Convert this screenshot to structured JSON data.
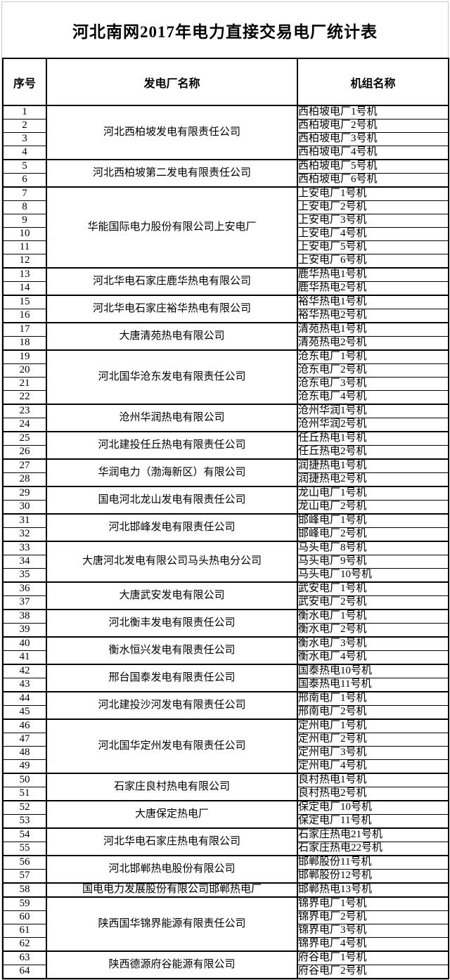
{
  "page": {
    "title": "河北南网2017年电力直接交易电厂统计表"
  },
  "colors": {
    "text": "#000000",
    "table_border": "#000000",
    "sheet_gridline": "#c9c9c9",
    "background": "#ffffff"
  },
  "table": {
    "columns": [
      {
        "key": "no",
        "label": "序号"
      },
      {
        "key": "plant",
        "label": "发电厂名称"
      },
      {
        "key": "unit",
        "label": "机组名称"
      }
    ],
    "groups": [
      {
        "plant": "河北西柏坡发电有限责任公司",
        "rows": [
          {
            "no": "1",
            "unit": "西柏坡电厂1号机"
          },
          {
            "no": "2",
            "unit": "西柏坡电厂2号机"
          },
          {
            "no": "3",
            "unit": "西柏坡电厂3号机"
          },
          {
            "no": "4",
            "unit": "西柏坡电厂4号机"
          }
        ]
      },
      {
        "plant": "河北西柏坡第二发电有限责任公司",
        "rows": [
          {
            "no": "5",
            "unit": "西柏坡电厂5号机"
          },
          {
            "no": "6",
            "unit": "西柏坡电厂6号机"
          }
        ]
      },
      {
        "plant": "华能国际电力股份有限公司上安电厂",
        "rows": [
          {
            "no": "7",
            "unit": "上安电厂1号机"
          },
          {
            "no": "8",
            "unit": "上安电厂2号机"
          },
          {
            "no": "9",
            "unit": "上安电厂3号机"
          },
          {
            "no": "10",
            "unit": "上安电厂4号机"
          },
          {
            "no": "11",
            "unit": "上安电厂5号机"
          },
          {
            "no": "12",
            "unit": "上安电厂6号机"
          }
        ]
      },
      {
        "plant": "河北华电石家庄鹿华热电有限公司",
        "rows": [
          {
            "no": "13",
            "unit": "鹿华热电1号机"
          },
          {
            "no": "14",
            "unit": "鹿华热电2号机"
          }
        ]
      },
      {
        "plant": "河北华电石家庄裕华热电有限公司",
        "rows": [
          {
            "no": "15",
            "unit": "裕华热电1号机"
          },
          {
            "no": "16",
            "unit": "裕华热电2号机"
          }
        ]
      },
      {
        "plant": "大唐清苑热电有限公司",
        "rows": [
          {
            "no": "17",
            "unit": "清苑热电1号机"
          },
          {
            "no": "18",
            "unit": "清苑热电2号机"
          }
        ]
      },
      {
        "plant": "河北国华沧东发电有限责任公司",
        "rows": [
          {
            "no": "19",
            "unit": "沧东电厂1号机"
          },
          {
            "no": "20",
            "unit": "沧东电厂2号机"
          },
          {
            "no": "21",
            "unit": "沧东电厂3号机"
          },
          {
            "no": "22",
            "unit": "沧东电厂4号机"
          }
        ]
      },
      {
        "plant": "沧州华润热电有限公司",
        "rows": [
          {
            "no": "23",
            "unit": "沧州华润1号机"
          },
          {
            "no": "24",
            "unit": "沧州华润2号机"
          }
        ]
      },
      {
        "plant": "河北建投任丘热电有限责任公司",
        "rows": [
          {
            "no": "25",
            "unit": "任丘热电1号机"
          },
          {
            "no": "26",
            "unit": "任丘热电2号机"
          }
        ]
      },
      {
        "plant": "华润电力（渤海新区）有限公司",
        "rows": [
          {
            "no": "27",
            "unit": "润捷热电1号机"
          },
          {
            "no": "28",
            "unit": "润捷热电2号机"
          }
        ]
      },
      {
        "plant": "国电河北龙山发电有限责任公司",
        "rows": [
          {
            "no": "29",
            "unit": "龙山电厂1号机"
          },
          {
            "no": "30",
            "unit": "龙山电厂2号机"
          }
        ]
      },
      {
        "plant": "河北邯峰发电有限责任公司",
        "rows": [
          {
            "no": "31",
            "unit": "邯峰电厂1号机"
          },
          {
            "no": "32",
            "unit": "邯峰电厂2号机"
          }
        ]
      },
      {
        "plant": "大唐河北发电有限公司马头热电分公司",
        "rows": [
          {
            "no": "33",
            "unit": "马头电厂8号机"
          },
          {
            "no": "34",
            "unit": "马头电厂9号机"
          },
          {
            "no": "35",
            "unit": "马头电厂10号机"
          }
        ]
      },
      {
        "plant": "大唐武安发电有限公司",
        "rows": [
          {
            "no": "36",
            "unit": "武安电厂1号机"
          },
          {
            "no": "37",
            "unit": "武安电厂2号机"
          }
        ]
      },
      {
        "plant": "河北衡丰发电有限责任公司",
        "rows": [
          {
            "no": "38",
            "unit": "衡水电厂1号机"
          },
          {
            "no": "39",
            "unit": "衡水电厂2号机"
          }
        ]
      },
      {
        "plant": "衡水恒兴发电有限责任公司",
        "rows": [
          {
            "no": "40",
            "unit": "衡水电厂3号机"
          },
          {
            "no": "41",
            "unit": "衡水电厂4号机"
          }
        ]
      },
      {
        "plant": "邢台国泰发电有限责任公司",
        "rows": [
          {
            "no": "42",
            "unit": "国泰热电10号机"
          },
          {
            "no": "43",
            "unit": "国泰热电11号机"
          }
        ]
      },
      {
        "plant": "河北建投沙河发电有限责任公司",
        "rows": [
          {
            "no": "44",
            "unit": "邢南电厂1号机"
          },
          {
            "no": "45",
            "unit": "邢南电厂2号机"
          }
        ]
      },
      {
        "plant": "河北国华定州发电有限责任公司",
        "rows": [
          {
            "no": "46",
            "unit": "定州电厂1号机"
          },
          {
            "no": "47",
            "unit": "定州电厂2号机"
          },
          {
            "no": "48",
            "unit": "定州电厂3号机"
          },
          {
            "no": "49",
            "unit": "定州电厂4号机"
          }
        ]
      },
      {
        "plant": "石家庄良村热电有限公司",
        "rows": [
          {
            "no": "50",
            "unit": "良村热电1号机"
          },
          {
            "no": "51",
            "unit": "良村热电2号机"
          }
        ]
      },
      {
        "plant": "大唐保定热电厂",
        "rows": [
          {
            "no": "52",
            "unit": "保定电厂10号机"
          },
          {
            "no": "53",
            "unit": "保定电厂11号机"
          }
        ]
      },
      {
        "plant": "河北华电石家庄热电有限公司",
        "rows": [
          {
            "no": "54",
            "unit": "石家庄热电21号机"
          },
          {
            "no": "55",
            "unit": "石家庄热电22号机"
          }
        ]
      },
      {
        "plant": "河北邯郸热电股份有限公司",
        "rows": [
          {
            "no": "56",
            "unit": "邯郸股份11号机"
          },
          {
            "no": "57",
            "unit": "邯郸股份12号机"
          }
        ]
      },
      {
        "plant": "国电电力发展股份有限公司邯郸热电厂",
        "rows": [
          {
            "no": "58",
            "unit": "邯郸热电13号机"
          }
        ]
      },
      {
        "plant": "陕西国华锦界能源有限责任公司",
        "rows": [
          {
            "no": "59",
            "unit": "锦界电厂1号机"
          },
          {
            "no": "60",
            "unit": "锦界电厂2号机"
          },
          {
            "no": "61",
            "unit": "锦界电厂3号机"
          },
          {
            "no": "62",
            "unit": "锦界电厂4号机"
          }
        ]
      },
      {
        "plant": "陕西德源府谷能源有限公司",
        "rows": [
          {
            "no": "63",
            "unit": "府谷电厂1号机"
          },
          {
            "no": "64",
            "unit": "府谷电厂2号机"
          }
        ]
      }
    ]
  }
}
